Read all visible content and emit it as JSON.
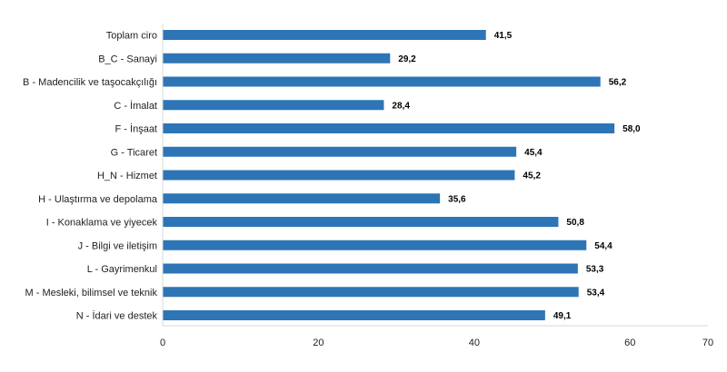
{
  "chart_data": {
    "type": "bar",
    "orientation": "horizontal",
    "title": "",
    "xlabel": "",
    "ylabel": "",
    "xlim": [
      0,
      70
    ],
    "ticks": [
      0,
      20,
      40,
      60,
      70
    ],
    "tick_labels": [
      "0",
      "20",
      "40",
      "60",
      "70"
    ],
    "grid": false,
    "legend": "none",
    "bar_color": "#2e75b6",
    "categories": [
      "Toplam ciro",
      "B_C - Sanayi",
      "B - Madencilik ve taşocakçılığı",
      "C - İmalat",
      "F - İnşaat",
      "G - Ticaret",
      "H_N - Hizmet",
      "H - Ulaştırma ve depolama",
      "I - Konaklama ve yiyecek",
      "J - Bilgi ve iletişim",
      "L - Gayrimenkul",
      "M - Mesleki, bilimsel ve teknik",
      "N - İdari ve destek"
    ],
    "values": [
      41.5,
      29.2,
      56.2,
      28.4,
      58.0,
      45.4,
      45.2,
      35.6,
      50.8,
      54.4,
      53.3,
      53.4,
      49.1
    ],
    "value_labels": [
      "41,5",
      "29,2",
      "56,2",
      "28,4",
      "58,0",
      "45,4",
      "45,2",
      "35,6",
      "50,8",
      "54,4",
      "53,3",
      "53,4",
      "49,1"
    ]
  }
}
